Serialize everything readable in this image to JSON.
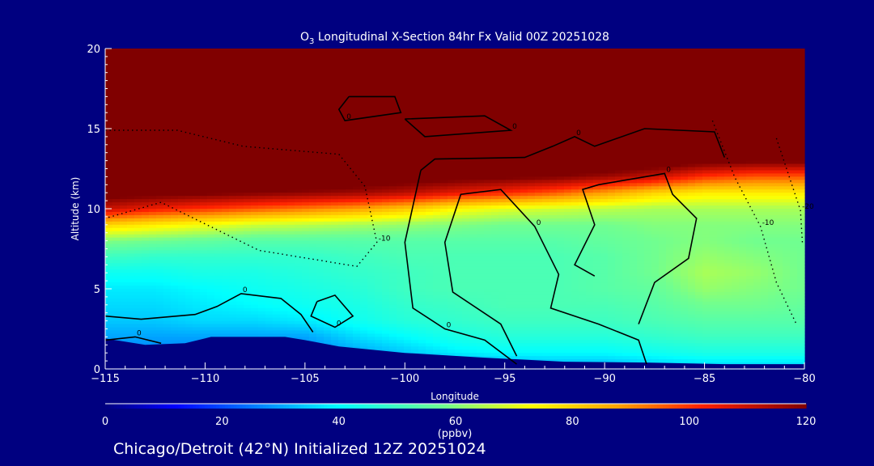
{
  "chart_data": {
    "type": "heatmap",
    "title": "O3 Longitudinal X-Section 84hr  Fx Valid 00Z 20251028",
    "title_parts": {
      "species": "O",
      "subscript": "3",
      "rest": " Longitudinal X-Section 84hr  Fx Valid 00Z 20251028"
    },
    "xlabel": "Longitude",
    "ylabel": "Altitude (km)",
    "xlim": [
      -115,
      -80
    ],
    "ylim": [
      0,
      20
    ],
    "xticks": [
      -115,
      -110,
      -105,
      -100,
      -95,
      -90,
      -85,
      -80
    ],
    "xtick_labels": [
      "−115",
      "−110",
      "−105",
      "−100",
      "−95",
      "−90",
      "−85",
      "−80"
    ],
    "yticks": [
      0,
      5,
      10,
      15,
      20
    ],
    "ytick_labels": [
      "0",
      "5",
      "10",
      "15",
      "20"
    ],
    "colorbar": {
      "label": "(ppbv)",
      "range": [
        0,
        120
      ],
      "ticks": [
        0,
        20,
        40,
        60,
        80,
        100,
        120
      ],
      "tick_labels": [
        "0",
        "20",
        "40",
        "60",
        "80",
        "100",
        "120"
      ],
      "stops": [
        [
          0,
          "#000080"
        ],
        [
          12,
          "#0000ff"
        ],
        [
          40,
          "#00ffff"
        ],
        [
          58,
          "#70ff90"
        ],
        [
          73,
          "#ffff00"
        ],
        [
          88,
          "#ffa000"
        ],
        [
          102,
          "#ff2000"
        ],
        [
          120,
          "#800000"
        ]
      ]
    },
    "lon": [
      -115,
      -112.5,
      -110,
      -107.5,
      -105,
      -102.5,
      -100,
      -97.5,
      -95,
      -92.5,
      -90,
      -87.5,
      -85,
      -82.5,
      -80
    ],
    "alt": [
      0,
      1,
      2,
      3,
      4,
      5,
      6,
      7,
      8,
      9,
      10,
      11,
      12,
      13,
      14,
      15,
      16,
      17,
      18,
      19,
      20
    ],
    "values": [
      [
        20,
        20,
        20,
        20,
        20,
        22,
        24,
        26,
        28,
        30,
        30,
        32,
        34,
        34,
        34
      ],
      [
        26,
        26,
        26,
        26,
        26,
        30,
        34,
        38,
        40,
        40,
        40,
        42,
        44,
        44,
        44
      ],
      [
        30,
        30,
        30,
        30,
        30,
        36,
        40,
        44,
        46,
        46,
        46,
        48,
        50,
        50,
        50
      ],
      [
        34,
        34,
        36,
        36,
        38,
        42,
        46,
        48,
        50,
        50,
        50,
        52,
        54,
        54,
        54
      ],
      [
        36,
        36,
        38,
        40,
        42,
        44,
        48,
        50,
        52,
        52,
        52,
        54,
        58,
        58,
        56
      ],
      [
        38,
        38,
        40,
        42,
        44,
        46,
        50,
        52,
        52,
        52,
        54,
        56,
        62,
        60,
        58
      ],
      [
        42,
        42,
        44,
        44,
        46,
        48,
        50,
        52,
        52,
        52,
        54,
        58,
        64,
        62,
        58
      ],
      [
        50,
        48,
        48,
        48,
        48,
        50,
        52,
        52,
        52,
        52,
        54,
        58,
        62,
        60,
        58
      ],
      [
        60,
        58,
        56,
        54,
        54,
        54,
        54,
        54,
        54,
        54,
        56,
        58,
        60,
        58,
        58
      ],
      [
        80,
        76,
        72,
        68,
        66,
        64,
        62,
        60,
        58,
        58,
        58,
        60,
        60,
        60,
        60
      ],
      [
        110,
        104,
        100,
        96,
        92,
        88,
        82,
        74,
        70,
        68,
        66,
        64,
        64,
        64,
        64
      ],
      [
        125,
        124,
        122,
        120,
        118,
        116,
        112,
        106,
        102,
        96,
        88,
        80,
        76,
        76,
        76
      ],
      [
        130,
        130,
        130,
        130,
        130,
        128,
        126,
        124,
        122,
        120,
        116,
        110,
        100,
        96,
        96
      ],
      [
        130,
        130,
        130,
        130,
        130,
        130,
        130,
        130,
        130,
        130,
        130,
        128,
        124,
        122,
        122
      ],
      [
        130,
        130,
        130,
        130,
        130,
        130,
        130,
        130,
        130,
        130,
        130,
        130,
        130,
        130,
        130
      ],
      [
        130,
        130,
        130,
        130,
        130,
        130,
        130,
        130,
        130,
        130,
        130,
        130,
        130,
        130,
        130
      ],
      [
        130,
        130,
        130,
        130,
        130,
        130,
        130,
        130,
        130,
        130,
        130,
        130,
        130,
        130,
        130
      ],
      [
        130,
        130,
        130,
        130,
        130,
        130,
        130,
        130,
        130,
        130,
        130,
        130,
        130,
        130,
        130
      ],
      [
        130,
        130,
        130,
        130,
        130,
        130,
        130,
        130,
        130,
        130,
        130,
        130,
        130,
        130,
        130
      ],
      [
        130,
        130,
        130,
        130,
        130,
        130,
        130,
        130,
        130,
        130,
        130,
        130,
        130,
        130,
        130
      ],
      [
        130,
        130,
        130,
        130,
        130,
        130,
        130,
        130,
        130,
        130,
        130,
        130,
        130,
        130,
        130
      ]
    ],
    "terrain": [
      [
        -115,
        1.9
      ],
      [
        -113,
        1.5
      ],
      [
        -111,
        1.6
      ],
      [
        -109.7,
        2.0
      ],
      [
        -107,
        2.0
      ],
      [
        -106,
        2.0
      ],
      [
        -105,
        1.8
      ],
      [
        -103.3,
        1.4
      ],
      [
        -100,
        1.0
      ],
      [
        -96,
        0.7
      ],
      [
        -92,
        0.45
      ],
      [
        -88,
        0.4
      ],
      [
        -84,
        0.3
      ],
      [
        -80,
        0.3
      ]
    ],
    "contours": [
      {
        "level": 0,
        "label": "0",
        "style": "solid",
        "points": [
          [
            -99.2,
            12.4
          ],
          [
            -100,
            7.9
          ],
          [
            -99.6,
            3.8
          ],
          [
            -98,
            2.5
          ],
          [
            -96,
            1.8
          ],
          [
            -94.4,
            0.3
          ]
        ]
      },
      {
        "level": 0,
        "label": "0",
        "style": "solid",
        "points": [
          [
            -99.2,
            12.4
          ],
          [
            -98.5,
            13.1
          ],
          [
            -94,
            13.2
          ],
          [
            -92.6,
            13.9
          ],
          [
            -91.5,
            14.5
          ],
          [
            -90.5,
            13.9
          ],
          [
            -88,
            15
          ],
          [
            -84.5,
            14.8
          ],
          [
            -84,
            13.2
          ]
        ]
      },
      {
        "level": 0,
        "label": "0",
        "style": "solid",
        "points": [
          [
            -94.4,
            0.8
          ],
          [
            -95.2,
            2.8
          ],
          [
            -97.6,
            4.8
          ],
          [
            -98,
            7.9
          ],
          [
            -97.2,
            10.9
          ],
          [
            -95.2,
            11.2
          ],
          [
            -93.5,
            8.9
          ],
          [
            -92.3,
            5.9
          ],
          [
            -92.7,
            3.8
          ],
          [
            -90.3,
            2.8
          ],
          [
            -88.3,
            1.8
          ],
          [
            -87.9,
            0.3
          ]
        ]
      },
      {
        "level": 0,
        "label": "0",
        "style": "solid",
        "points": [
          [
            -88.3,
            2.8
          ],
          [
            -87.5,
            5.4
          ],
          [
            -85.8,
            6.9
          ],
          [
            -85.4,
            9.4
          ],
          [
            -86.6,
            10.9
          ],
          [
            -87,
            12.2
          ],
          [
            -90.3,
            11.5
          ],
          [
            -91.1,
            11.2
          ],
          [
            -90.5,
            9
          ],
          [
            -91.5,
            6.5
          ],
          [
            -90.5,
            5.8
          ]
        ]
      },
      {
        "level": -10,
        "label": "-10",
        "style": "dotted",
        "points": [
          [
            -84.6,
            15.5
          ],
          [
            -83.5,
            12
          ],
          [
            -82.2,
            8.9
          ],
          [
            -81.4,
            5.4
          ],
          [
            -80.4,
            2.8
          ]
        ]
      },
      {
        "level": -20,
        "label": "-20",
        "style": "dotted",
        "points": [
          [
            -81.4,
            14.4
          ],
          [
            -80.2,
            9.9
          ],
          [
            -80.1,
            7.9
          ]
        ]
      },
      {
        "level": -10,
        "label": "-10",
        "style": "dotted",
        "points": [
          [
            -115,
            14.9
          ],
          [
            -111.4,
            14.9
          ],
          [
            -108.1,
            13.9
          ],
          [
            -103.3,
            13.4
          ],
          [
            -102,
            11.4
          ],
          [
            -101.4,
            7.9
          ],
          [
            -102.4,
            6.4
          ],
          [
            -107.3,
            7.4
          ],
          [
            -112.2,
            10.4
          ],
          [
            -115,
            9.4
          ]
        ]
      },
      {
        "level": 0,
        "label": "0",
        "style": "solid",
        "points": [
          [
            -115,
            3.3
          ],
          [
            -113.2,
            3.1
          ],
          [
            -110.5,
            3.4
          ],
          [
            -109.4,
            3.9
          ],
          [
            -108.2,
            4.7
          ],
          [
            -106.2,
            4.4
          ],
          [
            -105.2,
            3.4
          ],
          [
            -104.6,
            2.3
          ]
        ]
      },
      {
        "level": 0,
        "label": "0",
        "style": "solid",
        "points": [
          [
            -115,
            1.8
          ],
          [
            -113.5,
            2.0
          ],
          [
            -112.2,
            1.6
          ]
        ]
      },
      {
        "level": 0,
        "label": "0",
        "style": "solid",
        "points": [
          [
            -104.4,
            4.2
          ],
          [
            -103.5,
            4.6
          ],
          [
            -102.6,
            3.3
          ],
          [
            -103.5,
            2.6
          ],
          [
            -104.7,
            3.3
          ],
          [
            -104.4,
            4.2
          ]
        ]
      },
      {
        "level": 0,
        "label": "0",
        "style": "solid",
        "points": [
          [
            -102.8,
            17.0
          ],
          [
            -100.5,
            17.0
          ],
          [
            -100.2,
            16.0
          ],
          [
            -103.0,
            15.5
          ],
          [
            -103.3,
            16.2
          ],
          [
            -102.8,
            17.0
          ]
        ]
      },
      {
        "level": 0,
        "label": "0",
        "style": "solid",
        "points": [
          [
            -100.0,
            15.6
          ],
          [
            -96.0,
            15.8
          ],
          [
            -94.7,
            14.9
          ],
          [
            -99.0,
            14.5
          ],
          [
            -100.0,
            15.6
          ]
        ]
      }
    ]
  },
  "footer": {
    "location_text": "Chicago/Detroit (42°N) Initialized 12Z 20251024"
  }
}
